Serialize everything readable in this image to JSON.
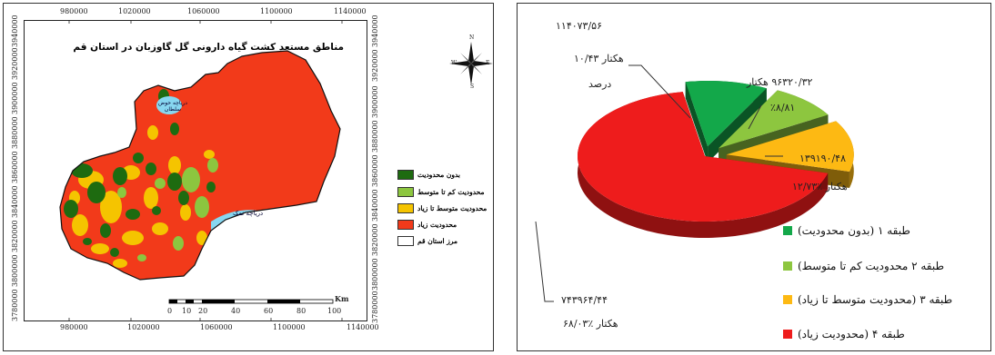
{
  "map": {
    "title": "مناطق مستعد کشت گیاه دارونی گل گاوزبان  در استان قم",
    "x_ticks": [
      "980000",
      "1020000",
      "1060000",
      "1100000",
      "1140000"
    ],
    "y_ticks": [
      "3940000",
      "3920000",
      "3900000",
      "3880000",
      "3860000",
      "3840000",
      "3820000",
      "3800000",
      "3780000"
    ],
    "lake_north_label": "دریاچه حوض سلطان",
    "lake_south_label": "دریاچه نمک",
    "compass": {
      "n": "N",
      "s": "S",
      "e": "E",
      "w": "W"
    },
    "scalebar": {
      "ticks": [
        "0",
        "10",
        "20",
        "40",
        "60",
        "80",
        "100"
      ],
      "unit": "Km"
    },
    "legend": [
      {
        "label": "بدون محدودیت",
        "color": "#1e6b10"
      },
      {
        "label": "محدودیت کم تا متوسط",
        "color": "#8cc63f"
      },
      {
        "label": "محدودیت متوسط تا زیاد",
        "color": "#f5c400"
      },
      {
        "label": "محدودیت زیاد",
        "color": "#f23a1a"
      },
      {
        "label": "مرز استان قم",
        "color": "#ffffff"
      }
    ]
  },
  "chart_data": {
    "type": "pie",
    "title": "",
    "categories": [
      "طبقه ۱ (بدون محدودیت)",
      "طبقه ۲ محدودیت کم تا متوسط)",
      "طبقه ۳ (محدودیت متوسط تا زیاد)",
      "طبقه ۴ (محدودیت زیاد)"
    ],
    "values": [
      10.43,
      8.81,
      12.73,
      68.03
    ],
    "areas_hectare": [
      "۱۱۴۰۷۳/۵۶",
      "۹۶۳۲۰/۳۲",
      "۱۳۹۱۹۰/۴۸",
      "۷۴۳۹۶۴/۴۴"
    ],
    "colors": [
      "#13a84a",
      "#8dc63f",
      "#fdb913",
      "#ee1c1c"
    ],
    "labels": {
      "s1_area": "۱۱۴۰۷۳/۵۶",
      "s1_pct": "هکتار ۱۰/۴۳",
      "s1_unit": "درصد",
      "s2_area": "۹۶۳۲۰/۳۲ هکتار",
      "s2_pct": "٪۸/۸۱",
      "s3_area": "۱۳۹۱۹۰/۴۸",
      "s3_pct": "هکتار ٪۱۲/۷۳",
      "s4_area": "۷۴۳۹۶۴/۴۴",
      "s4_pct": "هکتار ٪۶۸/۰۳"
    },
    "legend": [
      "طبقه ۱ (بدون محدودیت)",
      "طبقه ۲ محدودیت کم تا متوسط)",
      "طبقه ۳ (محدودیت متوسط تا زیاد)",
      "طبقه ۴ (محدودیت زیاد)"
    ]
  }
}
